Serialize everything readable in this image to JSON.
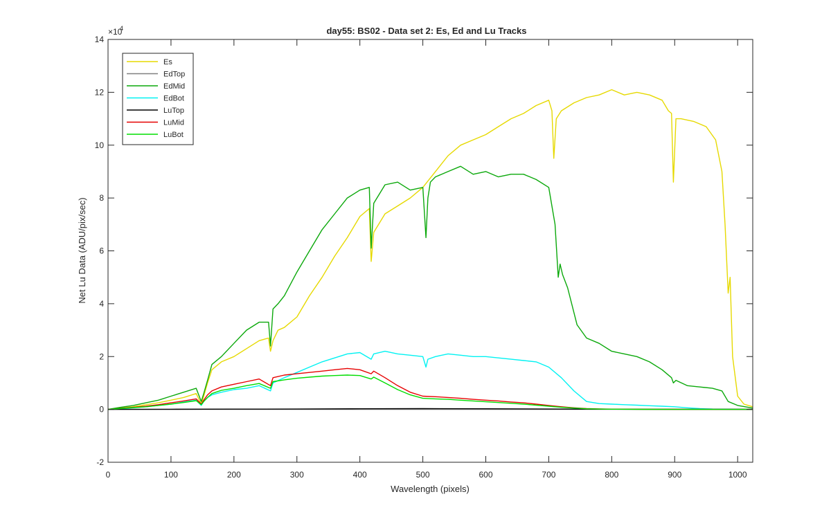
{
  "chart_data": {
    "type": "line",
    "title": "day55: BS02 - Data set 2: Es, Ed and Lu Tracks",
    "xlabel": "Wavelength (pixels)",
    "ylabel": "Net Lu Data (ADU/pix/sec)",
    "y_multiplier_label": "×10",
    "y_multiplier_exp": "4",
    "xlim": [
      0,
      1024
    ],
    "ylim": [
      -20000,
      140000
    ],
    "xticks": [
      0,
      100,
      200,
      300,
      400,
      500,
      600,
      700,
      800,
      900,
      1000
    ],
    "yticks": [
      -20000,
      0,
      20000,
      40000,
      60000,
      80000,
      100000,
      120000,
      140000
    ],
    "ytick_labels": [
      "-2",
      "0",
      "2",
      "4",
      "6",
      "8",
      "10",
      "12",
      "14"
    ],
    "xtick_labels": [
      "0",
      "100",
      "200",
      "300",
      "400",
      "500",
      "600",
      "700",
      "800",
      "900",
      "1000"
    ],
    "legend_position": "top-left",
    "grid": false,
    "series": [
      {
        "name": "Es",
        "color": "#e6d900",
        "x": [
          0,
          20,
          40,
          60,
          80,
          100,
          120,
          140,
          148,
          152,
          158,
          165,
          180,
          200,
          220,
          240,
          255,
          258,
          262,
          270,
          280,
          300,
          320,
          340,
          360,
          380,
          400,
          415,
          418,
          422,
          440,
          460,
          480,
          500,
          520,
          540,
          560,
          580,
          600,
          620,
          640,
          660,
          680,
          700,
          705,
          708,
          712,
          720,
          740,
          760,
          780,
          800,
          820,
          840,
          860,
          880,
          890,
          895,
          898,
          902,
          910,
          930,
          950,
          965,
          975,
          980,
          985,
          988,
          992,
          1000,
          1010,
          1024
        ],
        "y": [
          0,
          500,
          1000,
          1800,
          2500,
          3500,
          4500,
          6000,
          2000,
          5000,
          10000,
          15000,
          18000,
          20000,
          23000,
          26000,
          27000,
          22000,
          26000,
          30000,
          31000,
          35000,
          43000,
          50000,
          58000,
          65000,
          73000,
          76000,
          56000,
          67000,
          74000,
          77000,
          80000,
          84000,
          90000,
          96000,
          100000,
          102000,
          104000,
          107000,
          110000,
          112000,
          115000,
          117000,
          113000,
          95000,
          110000,
          113000,
          116000,
          118000,
          119000,
          121000,
          119000,
          120000,
          119000,
          117000,
          113000,
          112000,
          86000,
          110000,
          110000,
          109000,
          107000,
          102000,
          90000,
          70000,
          44000,
          50000,
          20000,
          5000,
          2000,
          1000
        ]
      },
      {
        "name": "EdTop",
        "color": "#808080",
        "x": [
          0,
          1024
        ],
        "y": [
          0,
          0
        ]
      },
      {
        "name": "EdMid",
        "color": "#0aa80a",
        "x": [
          0,
          20,
          40,
          60,
          80,
          100,
          120,
          140,
          148,
          152,
          158,
          165,
          180,
          200,
          220,
          240,
          255,
          258,
          262,
          270,
          280,
          300,
          320,
          340,
          360,
          380,
          400,
          415,
          418,
          422,
          440,
          460,
          480,
          500,
          505,
          508,
          512,
          520,
          540,
          560,
          580,
          600,
          620,
          640,
          660,
          680,
          700,
          710,
          715,
          718,
          722,
          730,
          745,
          760,
          780,
          800,
          820,
          840,
          860,
          880,
          895,
          898,
          902,
          920,
          940,
          960,
          975,
          985,
          1000,
          1024
        ],
        "y": [
          0,
          800,
          1500,
          2500,
          3500,
          5000,
          6500,
          8000,
          3000,
          6000,
          11000,
          17000,
          20000,
          25000,
          30000,
          33000,
          33000,
          24000,
          38000,
          40000,
          43000,
          52000,
          60000,
          68000,
          74000,
          80000,
          83000,
          84000,
          61000,
          78000,
          85000,
          86000,
          83000,
          84000,
          65000,
          80000,
          86000,
          88000,
          90000,
          92000,
          89000,
          90000,
          88000,
          89000,
          89000,
          87000,
          84000,
          70000,
          50000,
          55000,
          51000,
          46000,
          32000,
          27000,
          25000,
          22000,
          21000,
          20000,
          18000,
          15000,
          12000,
          10000,
          11000,
          9000,
          8500,
          8000,
          7000,
          3000,
          1500,
          500
        ]
      },
      {
        "name": "EdBot",
        "color": "#00f2f2",
        "x": [
          0,
          20,
          40,
          60,
          80,
          100,
          120,
          140,
          148,
          152,
          158,
          165,
          180,
          200,
          220,
          240,
          258,
          262,
          280,
          300,
          320,
          340,
          360,
          380,
          400,
          418,
          422,
          440,
          460,
          480,
          500,
          505,
          508,
          520,
          540,
          560,
          580,
          600,
          620,
          640,
          660,
          680,
          700,
          720,
          740,
          760,
          780,
          800,
          820,
          840,
          860,
          880,
          900,
          920,
          940,
          960,
          980,
          1000,
          1024
        ],
        "y": [
          0,
          300,
          600,
          1000,
          1500,
          2000,
          2800,
          3500,
          1500,
          3000,
          4500,
          5500,
          6500,
          7500,
          8000,
          9000,
          7000,
          10000,
          12000,
          14000,
          16000,
          18000,
          19500,
          21000,
          21500,
          19000,
          21000,
          22000,
          21000,
          20500,
          20000,
          16000,
          19000,
          20000,
          21000,
          20500,
          20000,
          20000,
          19500,
          19000,
          18500,
          18000,
          16000,
          12000,
          7000,
          3000,
          2200,
          2000,
          1800,
          1600,
          1400,
          1200,
          1000,
          600,
          300,
          150,
          100,
          50,
          0
        ]
      },
      {
        "name": "LuTop",
        "color": "#000000",
        "x": [
          0,
          100,
          200,
          300,
          400,
          500,
          600,
          700,
          800,
          900,
          1000,
          1024
        ],
        "y": [
          0,
          50,
          100,
          150,
          250,
          300,
          250,
          150,
          80,
          50,
          20,
          0
        ]
      },
      {
        "name": "LuMid",
        "color": "#e60000",
        "x": [
          0,
          20,
          40,
          60,
          80,
          100,
          120,
          140,
          148,
          152,
          158,
          165,
          180,
          200,
          220,
          240,
          258,
          262,
          280,
          300,
          320,
          340,
          360,
          380,
          400,
          418,
          422,
          440,
          460,
          480,
          500,
          520,
          540,
          560,
          580,
          600,
          620,
          640,
          660,
          680,
          700,
          720,
          740,
          760,
          780,
          800,
          850,
          900,
          1000,
          1024
        ],
        "y": [
          0,
          400,
          800,
          1200,
          1800,
          2500,
          3200,
          4000,
          2000,
          3500,
          5500,
          7000,
          8500,
          9500,
          10500,
          11500,
          9000,
          12000,
          13000,
          13500,
          14000,
          14500,
          15000,
          15500,
          15000,
          13500,
          14500,
          12000,
          9000,
          6500,
          5000,
          4800,
          4500,
          4200,
          3800,
          3500,
          3200,
          2800,
          2500,
          2000,
          1500,
          1000,
          600,
          300,
          200,
          100,
          50,
          20,
          0,
          0
        ]
      },
      {
        "name": "LuBot",
        "color": "#00dd00",
        "x": [
          0,
          20,
          40,
          60,
          80,
          100,
          120,
          140,
          148,
          152,
          158,
          165,
          180,
          200,
          220,
          240,
          258,
          262,
          280,
          300,
          320,
          340,
          360,
          380,
          400,
          418,
          422,
          440,
          460,
          480,
          500,
          520,
          540,
          560,
          580,
          600,
          620,
          640,
          660,
          680,
          700,
          720,
          740,
          760,
          780,
          800,
          850,
          900,
          1000,
          1024
        ],
        "y": [
          0,
          350,
          700,
          1000,
          1500,
          2000,
          2600,
          3300,
          1800,
          3000,
          4500,
          6000,
          7200,
          8000,
          9000,
          9800,
          8000,
          10500,
          11200,
          11800,
          12200,
          12600,
          12800,
          13000,
          12800,
          11500,
          12200,
          10000,
          7500,
          5500,
          4200,
          4000,
          3800,
          3500,
          3200,
          2900,
          2600,
          2300,
          2000,
          1600,
          1200,
          800,
          500,
          250,
          150,
          80,
          40,
          15,
          0,
          0
        ]
      }
    ]
  }
}
